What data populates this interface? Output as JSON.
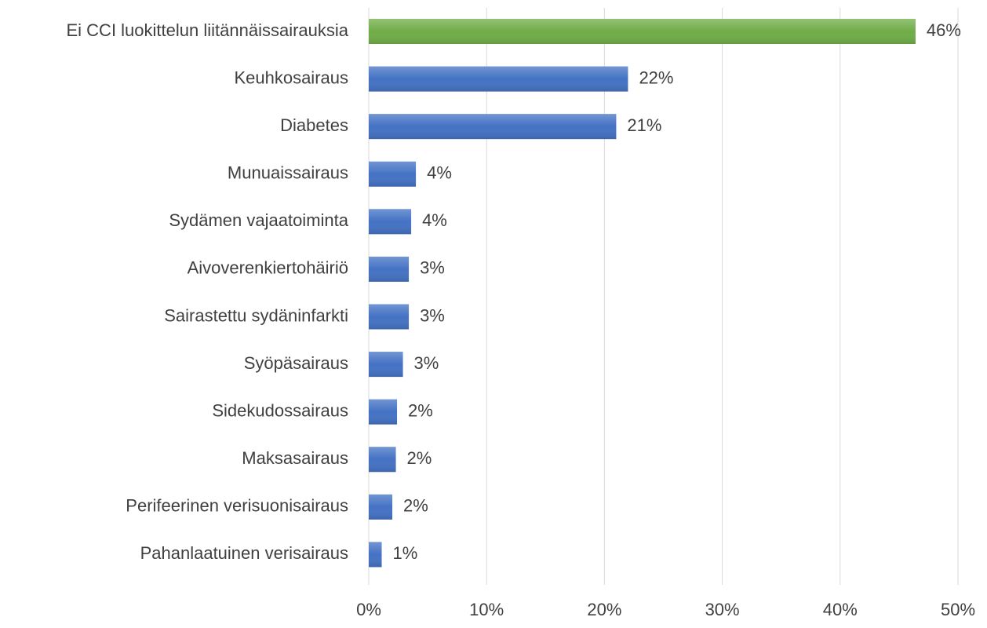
{
  "chart_data": {
    "type": "barh",
    "categories": [
      "Ei CCI luokittelun liitännäissairauksia",
      "Keuhkosairaus",
      "Diabetes",
      "Munuaissairaus",
      "Sydämen vajaatoiminta",
      "Aivoverenkiertohäiriö",
      "Sairastettu sydäninfarkti",
      "Syöpäsairaus",
      "Sidekudossairaus",
      "Maksasairaus",
      "Perifeerinen verisuonisairaus",
      "Pahanlaatuinen verisairaus"
    ],
    "values": [
      46.4,
      22,
      21,
      4,
      3.6,
      3.4,
      3.4,
      2.9,
      2.4,
      2.3,
      2,
      1.1
    ],
    "value_labels": [
      "46%",
      "22%",
      "21%",
      "4%",
      "4%",
      "3%",
      "3%",
      "3%",
      "2%",
      "2%",
      "2%",
      "1%"
    ],
    "colors": [
      "#70ad47",
      "#4472c4",
      "#4472c4",
      "#4472c4",
      "#4472c4",
      "#4472c4",
      "#4472c4",
      "#4472c4",
      "#4472c4",
      "#4472c4",
      "#4472c4",
      "#4472c4"
    ],
    "xlim": [
      0,
      50
    ],
    "xticks": [
      {
        "value": 0,
        "label": "0%"
      },
      {
        "value": 10,
        "label": "10%"
      },
      {
        "value": 20,
        "label": "20%"
      },
      {
        "value": 30,
        "label": "30%"
      },
      {
        "value": 40,
        "label": "40%"
      },
      {
        "value": 50,
        "label": "50%"
      }
    ],
    "grid": true
  }
}
